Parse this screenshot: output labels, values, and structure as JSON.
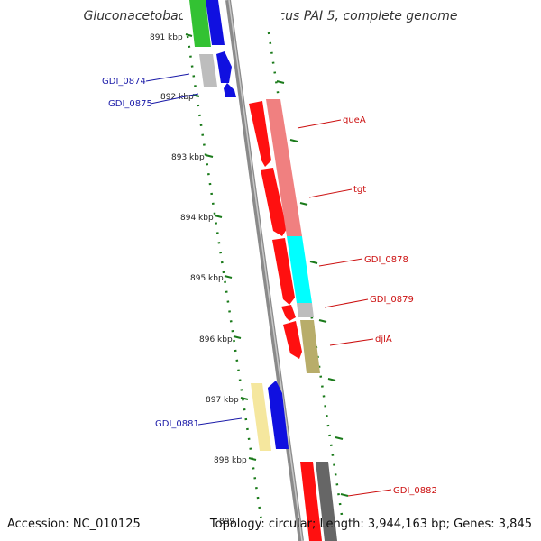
{
  "title": "Gluconacetobacter diazotrophicus PAI 5, complete genome",
  "accession": "Accession: NC_010125",
  "summary": "Topology: circular; Length: 3,944,163 bp; Genes: 3,845",
  "ticks": [
    "891 kbp",
    "892 kbp",
    "893 kbp",
    "894 kbp",
    "895 kbp",
    "896 kbp",
    "897 kbp",
    "898 kbp",
    "899"
  ],
  "labels": {
    "gdi_0874": "GDI_0874",
    "gdi_0875": "GDI_0875",
    "quea": "queA",
    "tgt": "tgt",
    "gdi_0878": "GDI_0878",
    "gdi_0879": "GDI_0879",
    "djla": "djlA",
    "gdi_0881": "GDI_0881",
    "gdi_0882": "GDI_0882"
  },
  "colors": {
    "forward_strand": "#ff0000",
    "reverse_strand": "#0000ff",
    "label_forward": "#cc1010",
    "label_reverse": "#1a1aa8",
    "backbone": "#808080",
    "tick_marks": "#1a7a1a"
  }
}
